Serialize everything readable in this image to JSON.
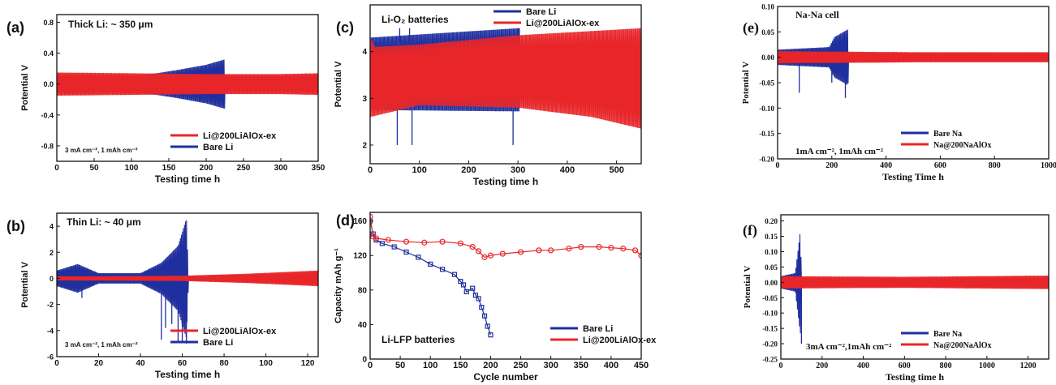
{
  "figure": {
    "colors": {
      "blue": "#1f2f9e",
      "red": "#e8262a",
      "axis": "#111111"
    }
  },
  "chart_data": [
    {
      "id": "a",
      "type": "line",
      "panel_label": "(a)",
      "title": "Thick Li: ~ 350 μm",
      "condition": "3 mA cm⁻², 1 mAh cm⁻²",
      "xlabel": "Testing time h",
      "ylabel": "Potential V",
      "xlim": [
        0,
        350
      ],
      "ylim": [
        -1.0,
        0.9
      ],
      "xticks": [
        0,
        50,
        100,
        150,
        200,
        250,
        300,
        350
      ],
      "yticks": [
        -0.8,
        -0.4,
        0.0,
        0.4,
        0.8
      ],
      "ytick_labels": [
        "-0.8",
        "-0.4",
        "0.0",
        "0.4",
        "0.8"
      ],
      "legend": [
        "Li@200LiAlOx-ex",
        "Bare Li"
      ],
      "legend_position": "bottom-right",
      "series": [
        {
          "name": "Bare Li",
          "color": "blue",
          "envelope": [
            [
              0,
              0.1
            ],
            [
              80,
              0.1
            ],
            [
              120,
              0.12
            ],
            [
              160,
              0.18
            ],
            [
              200,
              0.25
            ],
            [
              225,
              0.32
            ],
            [
              225,
              0
            ]
          ],
          "end": 226
        },
        {
          "name": "Li@200LiAlOx-ex",
          "color": "red",
          "envelope": [
            [
              0,
              0.15
            ],
            [
              100,
              0.14
            ],
            [
              200,
              0.13
            ],
            [
              300,
              0.13
            ],
            [
              350,
              0.14
            ]
          ],
          "end": 350
        }
      ]
    },
    {
      "id": "b",
      "type": "line",
      "panel_label": "(b)",
      "title": "Thin Li: ~ 40 μm",
      "condition": "3 mA cm⁻², 1 mAh cm⁻²",
      "xlabel": "Testing time h",
      "ylabel": "Potential V",
      "xlim": [
        0,
        125
      ],
      "ylim": [
        -6,
        5
      ],
      "xticks": [
        0,
        20,
        40,
        60,
        80,
        100,
        120
      ],
      "yticks": [
        -6,
        -4,
        -2,
        0,
        2,
        4
      ],
      "ytick_labels": [
        "-6",
        "-4",
        "-2",
        "0",
        "2",
        "4"
      ],
      "legend": [
        "Li@200LiAlOx-ex",
        "Bare Li"
      ],
      "legend_position": "bottom-right",
      "series": [
        {
          "name": "Bare Li",
          "color": "blue",
          "envelope": [
            [
              0,
              0.6
            ],
            [
              10,
              1.1
            ],
            [
              20,
              0.4
            ],
            [
              40,
              0.4
            ],
            [
              50,
              1.2
            ],
            [
              58,
              2.5
            ],
            [
              62,
              4.6
            ],
            [
              63,
              0
            ]
          ],
          "end": 63
        },
        {
          "name": "Li@200LiAlOx-ex",
          "color": "red",
          "envelope": [
            [
              0,
              0.15
            ],
            [
              60,
              0.2
            ],
            [
              90,
              0.35
            ],
            [
              125,
              0.6
            ]
          ],
          "end": 125
        }
      ]
    },
    {
      "id": "c",
      "type": "line",
      "panel_label": "(c)",
      "title": "Li-O₂ batteries",
      "xlabel": "Testing time h",
      "ylabel": "Potential V",
      "xlim": [
        0,
        550
      ],
      "ylim": [
        1.6,
        5.0
      ],
      "xticks": [
        0,
        100,
        200,
        300,
        400,
        500
      ],
      "yticks": [
        2,
        3,
        4
      ],
      "ytick_labels": [
        "2",
        "3",
        "4"
      ],
      "legend": [
        "Bare Li",
        "Li@200LiAlOx-ex"
      ],
      "legend_position": "top-right",
      "series": [
        {
          "name": "Bare Li",
          "color": "blue",
          "upper": [
            [
              0,
              4.3
            ],
            [
              300,
              4.5
            ]
          ],
          "lower": [
            [
              0,
              2.75
            ],
            [
              300,
              2.72
            ]
          ],
          "end": 303
        },
        {
          "name": "Li@200LiAlOx-ex",
          "color": "red",
          "upper": [
            [
              0,
              4.3
            ],
            [
              10,
              4.1
            ],
            [
              100,
              4.15
            ],
            [
              300,
              4.35
            ],
            [
              550,
              4.5
            ]
          ],
          "lower": [
            [
              0,
              2.6
            ],
            [
              100,
              2.85
            ],
            [
              300,
              2.8
            ],
            [
              450,
              2.6
            ],
            [
              550,
              2.35
            ]
          ],
          "end": 550
        }
      ]
    },
    {
      "id": "d",
      "type": "line",
      "panel_label": "(d)",
      "title": "Li-LFP batteries",
      "xlabel": "Cycle number",
      "ylabel": "Capacity mAh g⁻¹",
      "xlim": [
        0,
        450
      ],
      "ylim": [
        0,
        170
      ],
      "xticks": [
        0,
        50,
        100,
        150,
        200,
        250,
        300,
        350,
        400,
        450
      ],
      "yticks": [
        0,
        40,
        80,
        120,
        160
      ],
      "ytick_labels": [
        "0",
        "40",
        "80",
        "120",
        "160"
      ],
      "legend": [
        "Bare Li",
        "Li@200LiAlOx-ex"
      ],
      "legend_position": "bottom-right",
      "series": [
        {
          "name": "Bare Li",
          "color": "blue",
          "x": [
            0,
            5,
            10,
            20,
            40,
            60,
            80,
            100,
            120,
            140,
            150,
            155,
            160,
            170,
            175,
            180,
            185,
            190,
            195,
            200
          ],
          "values": [
            160,
            145,
            138,
            134,
            130,
            124,
            118,
            110,
            104,
            98,
            90,
            86,
            78,
            82,
            74,
            70,
            60,
            50,
            38,
            28
          ]
        },
        {
          "name": "Li@200LiAlOx-ex",
          "color": "red",
          "x": [
            0,
            5,
            10,
            30,
            60,
            90,
            120,
            150,
            170,
            180,
            190,
            200,
            220,
            250,
            280,
            300,
            330,
            350,
            380,
            400,
            420,
            440,
            450
          ],
          "values": [
            165,
            142,
            140,
            138,
            136,
            135,
            136,
            134,
            130,
            125,
            118,
            120,
            122,
            124,
            126,
            126,
            128,
            130,
            130,
            129,
            128,
            126,
            120
          ]
        }
      ]
    },
    {
      "id": "e",
      "type": "line",
      "panel_label": "(e)",
      "title": "Na-Na cell",
      "condition": "1mA cm⁻², 1mAh cm⁻²",
      "xlabel": "Testing Time h",
      "ylabel": "Potential V",
      "xlim": [
        0,
        1000
      ],
      "ylim": [
        -0.2,
        0.1
      ],
      "xticks": [
        0,
        200,
        400,
        600,
        800,
        1000
      ],
      "yticks": [
        -0.2,
        -0.15,
        -0.1,
        -0.05,
        0.0,
        0.05,
        0.1
      ],
      "ytick_labels": [
        "-0.20",
        "-0.15",
        "-0.10",
        "-0.05",
        "0.00",
        "0.05",
        "0.10"
      ],
      "legend": [
        "Bare Na",
        "Na@200NaAlOx"
      ],
      "legend_position": "bottom-right",
      "series": [
        {
          "name": "Bare Na",
          "color": "blue",
          "envelope": [
            [
              0,
              0.015
            ],
            [
              190,
              0.02
            ],
            [
              210,
              0.04
            ],
            [
              260,
              0.055
            ],
            [
              262,
              0
            ]
          ],
          "end": 262
        },
        {
          "name": "Na@200NaAlOx",
          "color": "red",
          "envelope": [
            [
              0,
              0.012
            ],
            [
              500,
              0.01
            ],
            [
              1000,
              0.01
            ]
          ],
          "end": 1000
        }
      ]
    },
    {
      "id": "f",
      "type": "line",
      "panel_label": "(f)",
      "condition": "3mA cm⁻²,1mAh cm⁻²",
      "xlabel": "Testing time h",
      "ylabel": "Potential V",
      "xlim": [
        0,
        1300
      ],
      "ylim": [
        -0.25,
        0.22
      ],
      "xticks": [
        0,
        200,
        400,
        600,
        800,
        1000,
        1200
      ],
      "yticks": [
        -0.25,
        -0.2,
        -0.15,
        -0.1,
        -0.05,
        0.0,
        0.05,
        0.1,
        0.15,
        0.2
      ],
      "ytick_labels": [
        "-0.25",
        "-0.20",
        "-0.15",
        "-0.10",
        "-0.05",
        "0.00",
        "0.05",
        "0.10",
        "0.15",
        "0.20"
      ],
      "legend": [
        "Bare Na",
        "Na@200NaAlOx"
      ],
      "legend_position": "bottom-right",
      "series": [
        {
          "name": "Bare Na",
          "color": "blue",
          "envelope": [
            [
              0,
              0.02
            ],
            [
              70,
              0.03
            ],
            [
              95,
              0.17
            ],
            [
              100,
              0
            ]
          ],
          "end": 100
        },
        {
          "name": "Na@200NaAlOx",
          "color": "red",
          "envelope": [
            [
              0,
              0.02
            ],
            [
              600,
              0.018
            ],
            [
              1300,
              0.022
            ]
          ],
          "end": 1300
        }
      ]
    }
  ]
}
